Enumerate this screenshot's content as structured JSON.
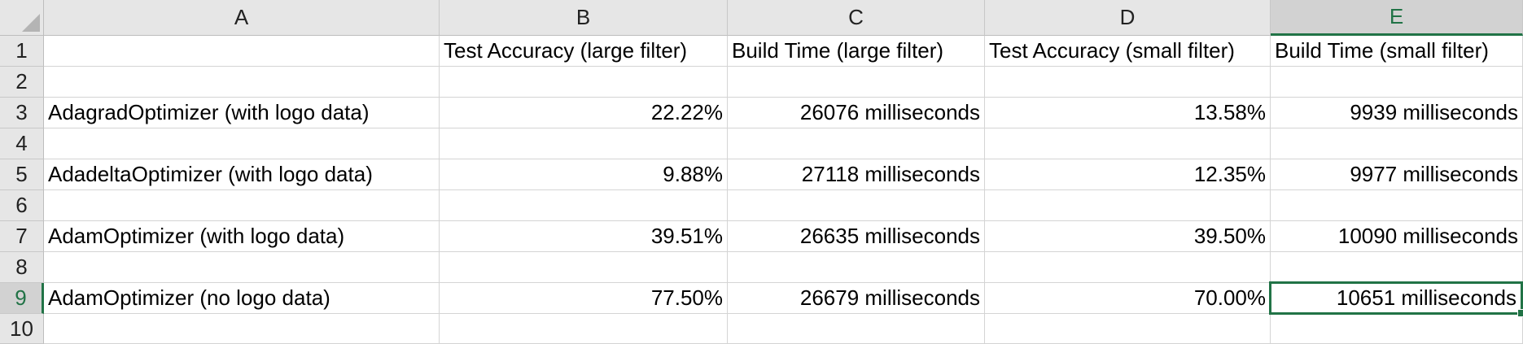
{
  "columns": [
    "A",
    "B",
    "C",
    "D",
    "E"
  ],
  "rows": [
    "1",
    "2",
    "3",
    "4",
    "5",
    "6",
    "7",
    "8",
    "9",
    "10"
  ],
  "cells": {
    "B1": "Test Accuracy (large filter)",
    "C1": "Build Time (large filter)",
    "D1": "Test Accuracy (small filter)",
    "E1": "Build Time (small filter)",
    "A3": "AdagradOptimizer (with logo data)",
    "B3": "22.22%",
    "C3": "26076 milliseconds",
    "D3": "13.58%",
    "E3": "9939 milliseconds",
    "A5": "AdadeltaOptimizer (with logo data)",
    "B5": "9.88%",
    "C5": "27118 milliseconds",
    "D5": "12.35%",
    "E5": "9977 milliseconds",
    "A7": "AdamOptimizer (with logo data)",
    "B7": "39.51%",
    "C7": "26635 milliseconds",
    "D7": "39.50%",
    "E7": "10090 milliseconds",
    "A9": "AdamOptimizer (no logo data)",
    "B9": "77.50%",
    "C9": "26679 milliseconds",
    "D9": "70.00%",
    "E9": "10651 milliseconds"
  },
  "active_cell": "E9",
  "colors": {
    "accent": "#217346",
    "header_bg": "#e6e6e6",
    "gridline": "#d4d4d4"
  }
}
